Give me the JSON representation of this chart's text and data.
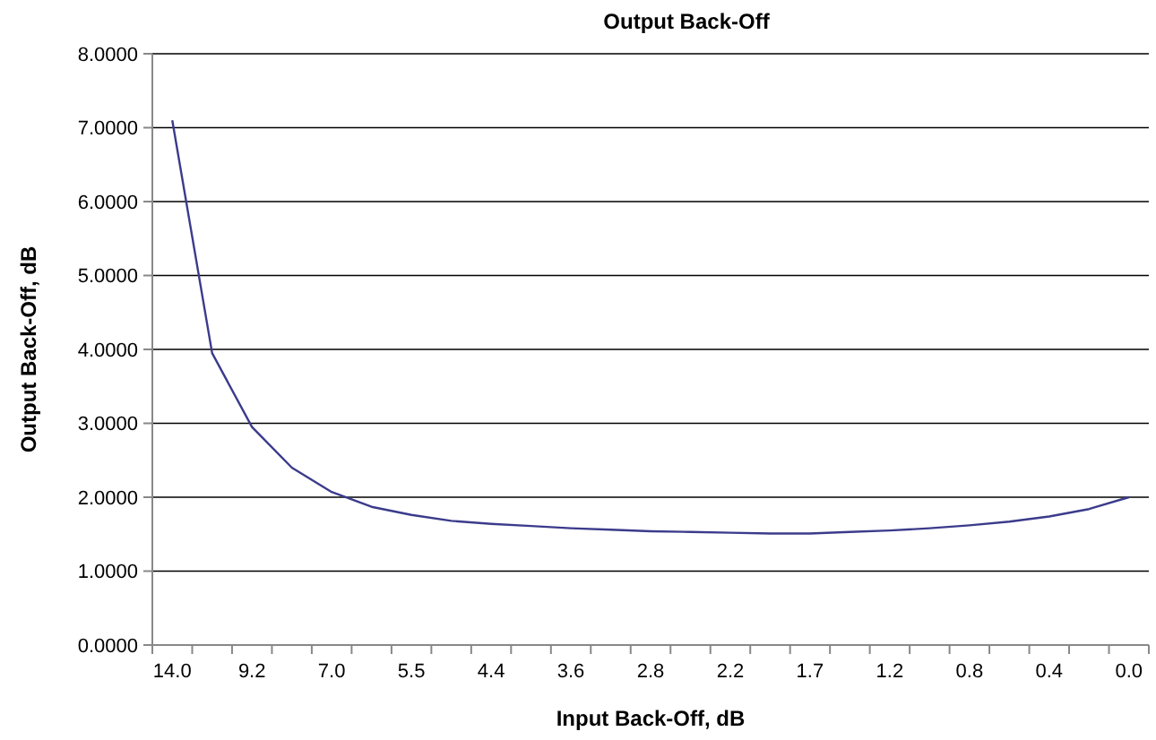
{
  "chart_data": {
    "type": "line",
    "title": "Output Back-Off",
    "xlabel": "Input Back-Off, dB",
    "ylabel": "Output Back-Off, dB",
    "categories": [
      "14.0",
      null,
      "9.2",
      null,
      "7.0",
      null,
      "5.5",
      null,
      "4.4",
      null,
      "3.6",
      null,
      "2.8",
      null,
      "2.2",
      null,
      "1.7",
      null,
      "1.2",
      null,
      "0.8",
      null,
      "0.4",
      null,
      "0.0"
    ],
    "series": [
      {
        "color": "#3b3b8c",
        "values": [
          7.1,
          3.95,
          2.95,
          2.4,
          2.07,
          1.87,
          1.76,
          1.68,
          1.64,
          1.61,
          1.58,
          1.56,
          1.54,
          1.53,
          1.52,
          1.51,
          1.51,
          1.53,
          1.55,
          1.58,
          1.62,
          1.67,
          1.74,
          1.84,
          2.0
        ]
      }
    ],
    "ylim": [
      0,
      8
    ],
    "yticks": [
      {
        "value": 0,
        "label": "0.0000"
      },
      {
        "value": 1,
        "label": "1.0000"
      },
      {
        "value": 2,
        "label": "2.0000"
      },
      {
        "value": 3,
        "label": "3.0000"
      },
      {
        "value": 4,
        "label": "4.0000"
      },
      {
        "value": 5,
        "label": "5.0000"
      },
      {
        "value": 6,
        "label": "6.0000"
      },
      {
        "value": 7,
        "label": "7.0000"
      },
      {
        "value": 8,
        "label": "8.0000"
      }
    ],
    "grid": "y",
    "marker": "none",
    "line_style": "solid"
  }
}
